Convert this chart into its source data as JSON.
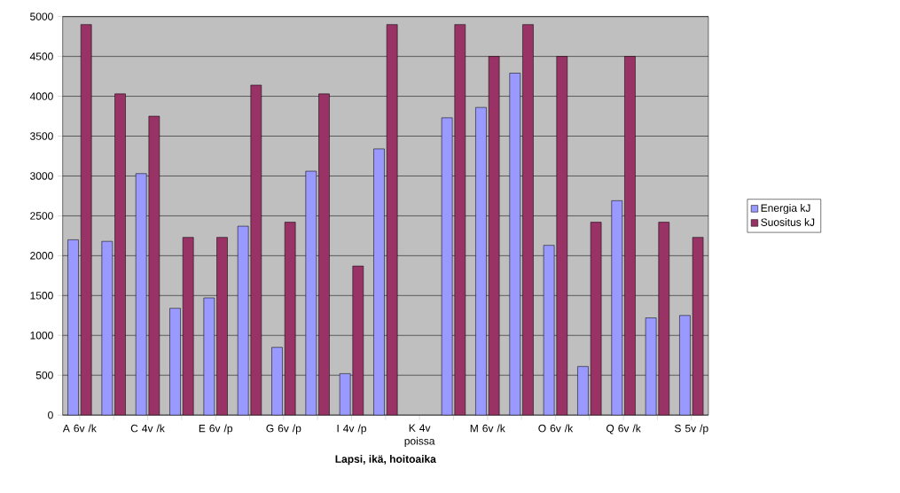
{
  "chart_data": {
    "type": "bar",
    "xlabel": "Lapsi, ikä, hoitoaika",
    "categories": [
      "A 6v /k",
      null,
      "C 4v /k",
      null,
      "E 6v /p",
      null,
      "G 6v /p",
      null,
      "I 4v /p",
      null,
      "K 4v poissa",
      null,
      "M 6v /k",
      null,
      "O 6v /k",
      null,
      "Q 6v /k",
      null,
      "S 5v /p"
    ],
    "series": [
      {
        "name": "Energia kJ",
        "color": "#9999ff",
        "values": [
          2200,
          2180,
          3030,
          1340,
          1470,
          2370,
          850,
          3060,
          520,
          3340,
          null,
          3730,
          3860,
          4290,
          2130,
          610,
          2690,
          1220,
          1250
        ]
      },
      {
        "name": "Suositus kJ",
        "color": "#993366",
        "values": [
          4900,
          4030,
          3750,
          2230,
          2230,
          4140,
          2420,
          4030,
          1870,
          4900,
          null,
          4900,
          4500,
          4900,
          4500,
          2420,
          4500,
          2420,
          2230
        ]
      }
    ],
    "ylim": [
      0,
      5000
    ],
    "yticks": [
      0,
      500,
      1000,
      1500,
      2000,
      2500,
      3000,
      3500,
      4000,
      4500,
      5000
    ],
    "grid": "y",
    "legend": "right"
  }
}
